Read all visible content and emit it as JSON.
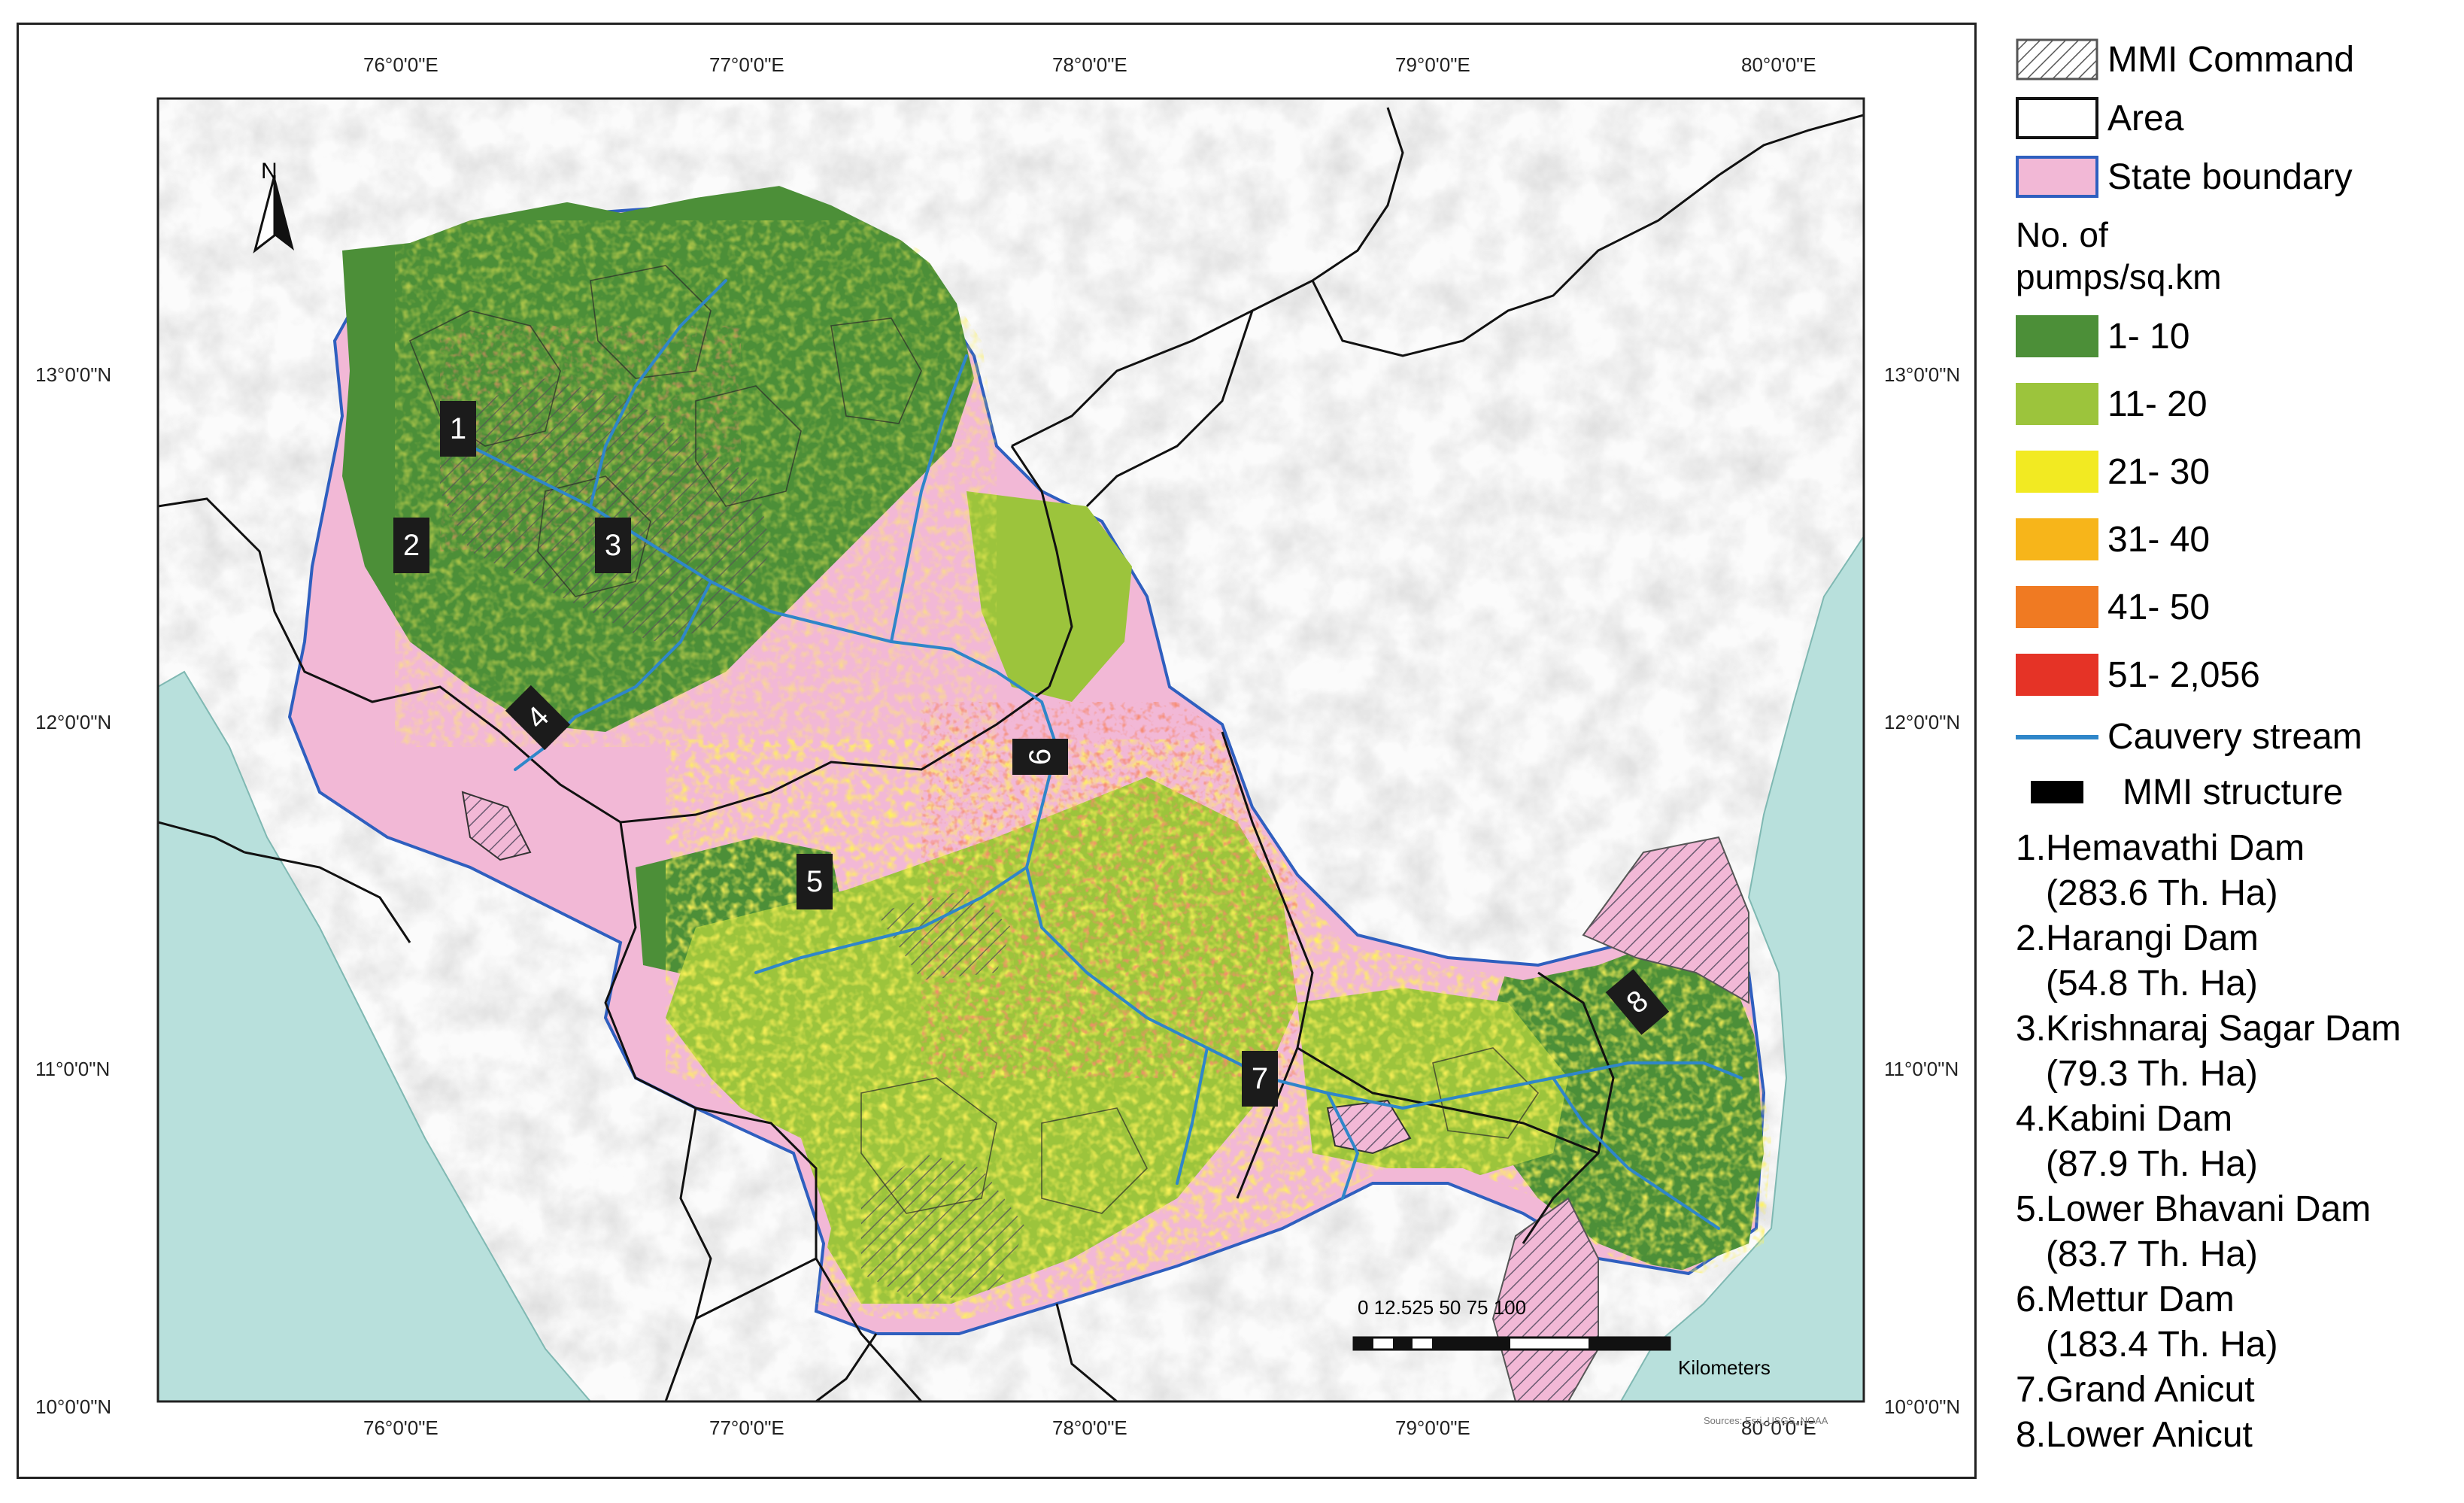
{
  "map": {
    "longitude_labels": [
      "76°0'0\"E",
      "77°0'0\"E",
      "78°0'0\"E",
      "79°0'0\"E",
      "80°0'0\"E"
    ],
    "latitude_labels": [
      "13°0'0\"N",
      "12°0'0\"N",
      "11°0'0\"N",
      "10°0'0\"N"
    ],
    "north_arrow": "N",
    "scale_bar": {
      "ticks": "0 12.525     50      75    100",
      "unit": "Kilometers"
    },
    "sources": "Sources: Esri, USGS, NOAA",
    "dam_markers": [
      "1",
      "2",
      "3",
      "4",
      "5",
      "6",
      "7",
      "8"
    ],
    "colors": {
      "sea": "#b8e0dc",
      "state_boundary_fill": "#f2b8d6",
      "state_boundary_line": "#2f5fbf",
      "cauvery_stream": "#2f86c9",
      "class_1_10": "#4c8f38",
      "class_11_20": "#9cc43c",
      "class_21_30": "#f2ea22",
      "class_31_40": "#f7b51a",
      "class_41_50": "#f07a22",
      "class_51_2056": "#e53326"
    }
  },
  "legend": {
    "items": [
      {
        "label": "MMI Command",
        "icon": "hatched-box"
      },
      {
        "label": "Area",
        "icon": "outline-box"
      },
      {
        "label": "State boundary",
        "icon": "pink-box-blue-border"
      }
    ],
    "heading": "No. of pumps/sq.km",
    "classes": [
      {
        "label": "1- 10",
        "color": "#4c8f38"
      },
      {
        "label": "11- 20",
        "color": "#9cc43c"
      },
      {
        "label": "21- 30",
        "color": "#f2ea22"
      },
      {
        "label": "31- 40",
        "color": "#f7b51a"
      },
      {
        "label": "41- 50",
        "color": "#f07a22"
      },
      {
        "label": "51- 2,056",
        "color": "#e53326"
      }
    ],
    "stream": "Cauvery stream",
    "structure": "MMI structure",
    "dams": [
      {
        "name": "1.Hemavathi Dam",
        "area": "(283.6 Th. Ha)"
      },
      {
        "name": "2.Harangi Dam",
        "area": "(54.8 Th. Ha)"
      },
      {
        "name": "3.Krishnaraj Sagar Dam",
        "area": "(79.3 Th. Ha)"
      },
      {
        "name": "4.Kabini Dam",
        "area": "(87.9 Th. Ha)"
      },
      {
        "name": "5.Lower Bhavani Dam",
        "area": "(83.7 Th. Ha)"
      },
      {
        "name": "6.Mettur Dam",
        "area": "(183.4 Th. Ha)"
      },
      {
        "name": "7.Grand Anicut",
        "area": ""
      },
      {
        "name": "8.Lower Anicut",
        "area": ""
      }
    ]
  }
}
